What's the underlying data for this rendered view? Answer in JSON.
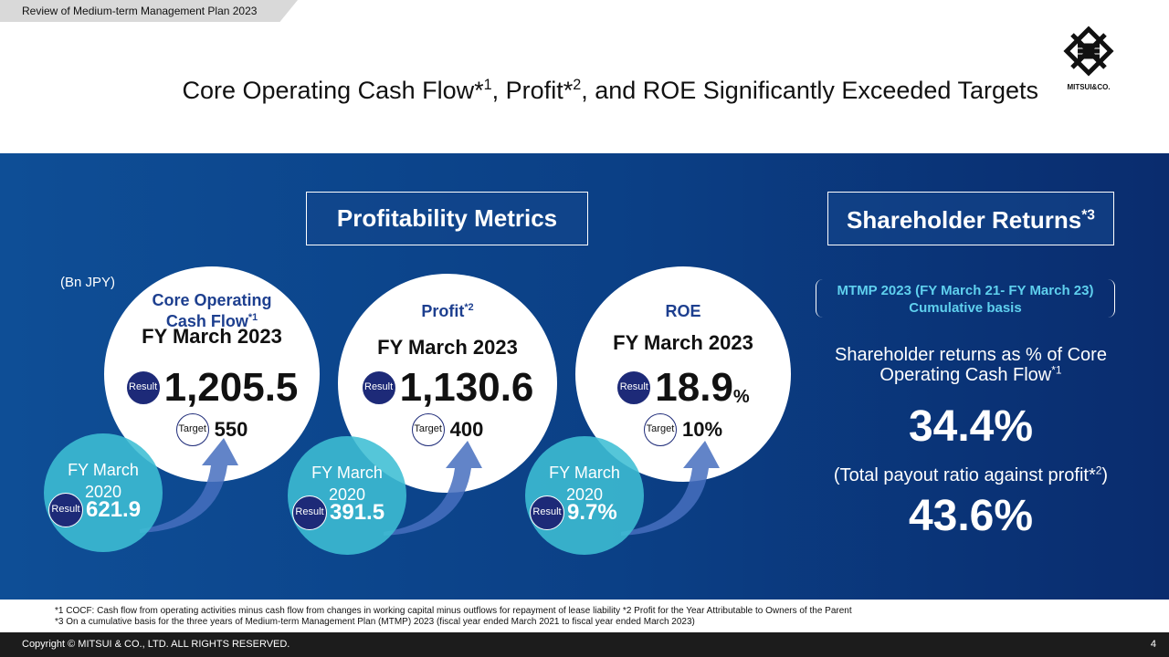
{
  "header": {
    "tag": "Review of Medium-term Management Plan 2023",
    "title": [
      "Core Operating Cash Flow*",
      "1",
      ", Profit*",
      "2",
      ", and ROE Significantly Exceeded Targets"
    ],
    "logo": "MITSUI&CO."
  },
  "profitability": {
    "heading": "Profitability Metrics",
    "unit": "(Bn JPY)",
    "metrics": [
      {
        "name": "Core Operating Cash Flow",
        "name_sup": "*1",
        "period": "FY March 2023",
        "result_label": "Result",
        "result": "1,205.5",
        "target_label": "Target",
        "target": "550",
        "prior_period": "FY March 2020",
        "prior_label": "Result",
        "prior": "621.9"
      },
      {
        "name": "Profit",
        "name_sup": "*2",
        "period": "FY March 2023",
        "result_label": "Result",
        "result": "1,130.6",
        "target_label": "Target",
        "target": "400",
        "prior_period": "FY March 2020",
        "prior_label": "Result",
        "prior": "391.5"
      },
      {
        "name": "ROE",
        "period": "FY March 2023",
        "result_label": "Result",
        "result": "18.9",
        "result_unit": "%",
        "target_label": "Target",
        "target": "10%",
        "prior_period": "FY March 2020",
        "prior_label": "Result",
        "prior": "9.7%"
      }
    ]
  },
  "shareholder": {
    "heading": "Shareholder Returns",
    "heading_sup": "*3",
    "basis": [
      "MTMP 2023 (FY March 21- FY March 23)",
      "Cumulative basis"
    ],
    "metric1": [
      "Shareholder returns as % of Core Operating Cash Flow",
      "*1"
    ],
    "value1": "34.4%",
    "metric2": [
      "(Total payout ratio against profit*",
      "2",
      ")"
    ],
    "value2": "43.6%"
  },
  "footnotes": [
    "*1 COCF:  Cash flow from operating activities minus cash flow from changes in working capital minus outflows for repayment of lease liability  *2 Profit for the Year Attributable to Owners of the Parent",
    "*3 On a cumulative basis for the three years of Medium-term Management Plan (MTMP) 2023 (fiscal year ended March 2021 to fiscal year ended March 2023)"
  ],
  "footer": {
    "copyright": "Copyright © MITSUI & CO., LTD. ALL RIGHTS RESERVED.",
    "page": "4"
  }
}
